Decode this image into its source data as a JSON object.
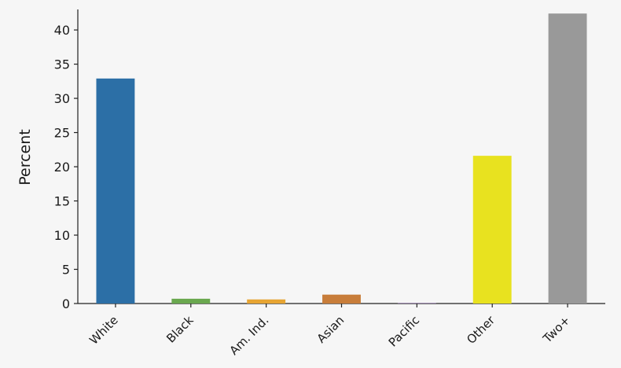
{
  "chart_data": {
    "type": "bar",
    "title": "",
    "xlabel": "",
    "ylabel": "Percent",
    "ylim": [
      0,
      43
    ],
    "yticks": [
      0,
      5,
      10,
      15,
      20,
      25,
      30,
      35,
      40
    ],
    "grid": false,
    "categories": [
      "White",
      "Black",
      "Am. Ind.",
      "Asian",
      "Pacific",
      "Other",
      "Two+"
    ],
    "values": [
      32.9,
      0.7,
      0.6,
      1.3,
      0.05,
      21.6,
      42.4
    ],
    "colors": [
      "#2c6fa6",
      "#6aa84f",
      "#e7a533",
      "#c87d3a",
      "#9467bd",
      "#e8e21f",
      "#999999"
    ]
  }
}
